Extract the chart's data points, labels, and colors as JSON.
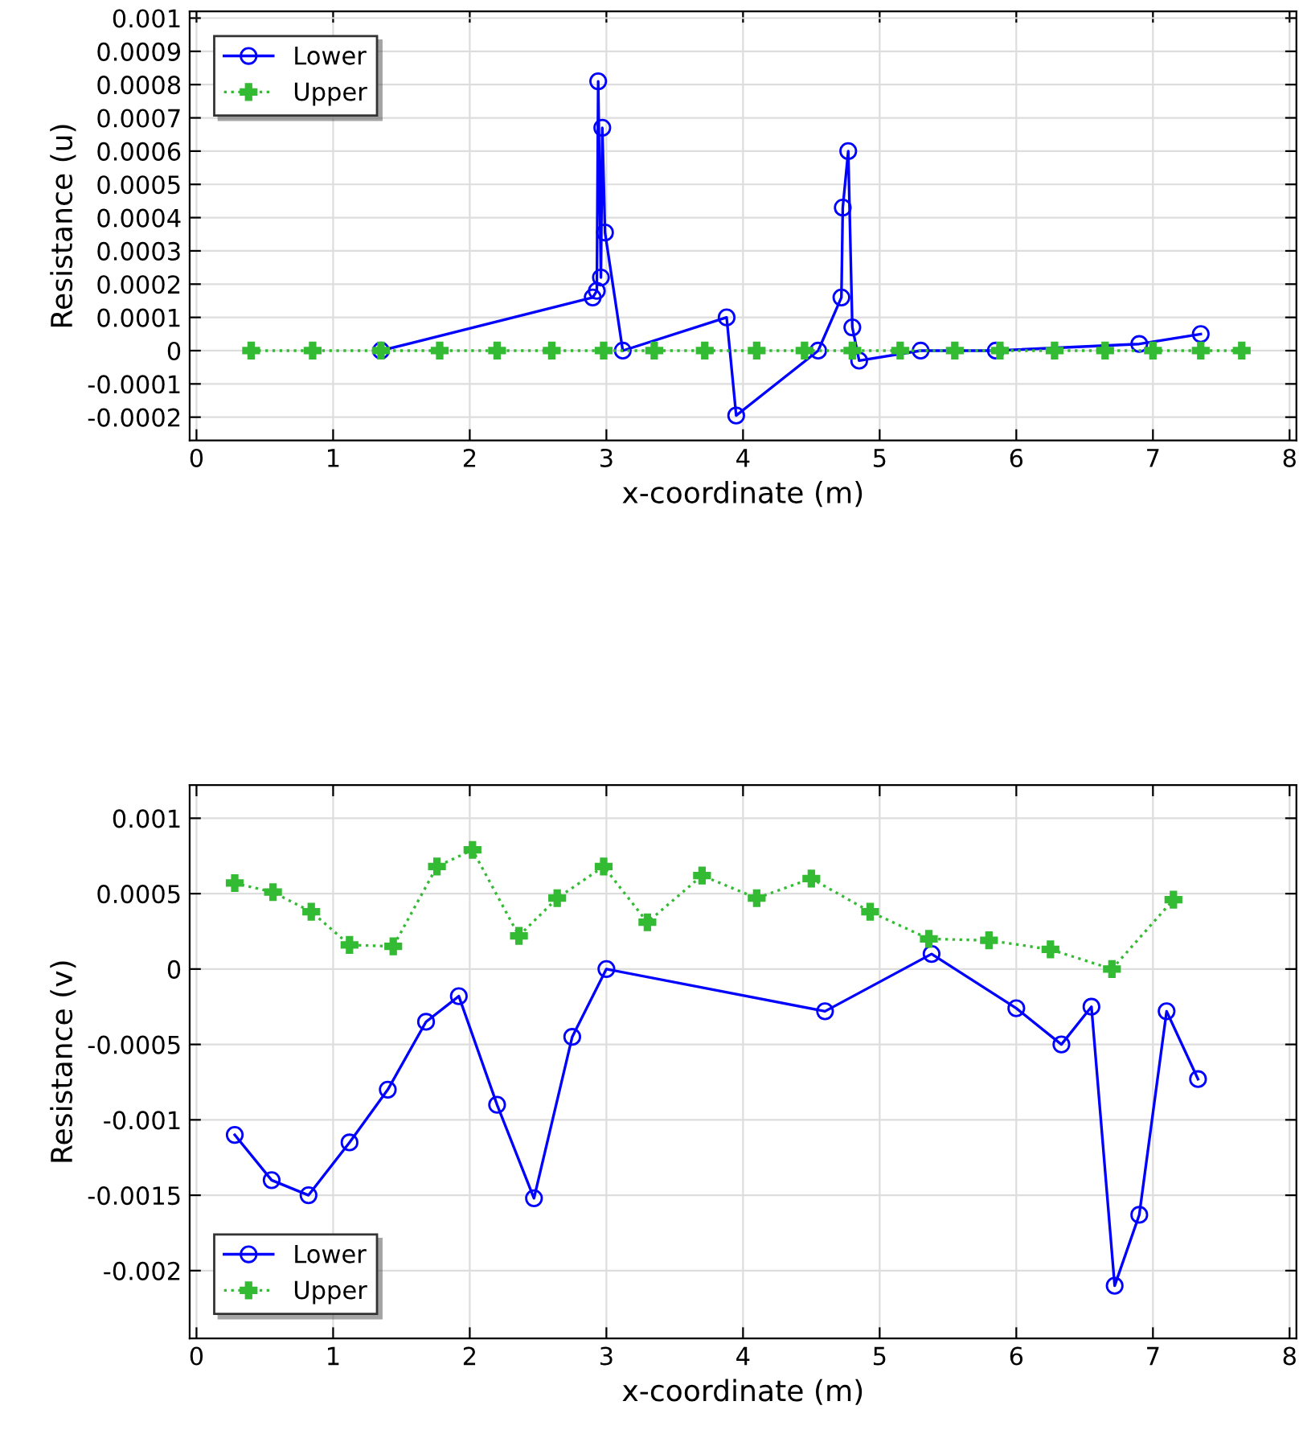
{
  "chart_data": [
    {
      "type": "line",
      "xlabel": "x-coordinate (m)",
      "ylabel": "Resistance (u)",
      "xlim": [
        -0.05,
        8.05
      ],
      "ylim": [
        -0.00027,
        0.00102
      ],
      "xticks": [
        0,
        1,
        2,
        3,
        4,
        5,
        6,
        7,
        8
      ],
      "yticks": [
        {
          "value": -0.0002,
          "label": "-0.0002"
        },
        {
          "value": -0.0001,
          "label": "-0.0001"
        },
        0,
        {
          "value": 0.0001,
          "label": "0.0001"
        },
        {
          "value": 0.0002,
          "label": "0.0002"
        },
        {
          "value": 0.0003,
          "label": "0.0003"
        },
        {
          "value": 0.0004,
          "label": "0.0004"
        },
        {
          "value": 0.0005,
          "label": "0.0005"
        },
        {
          "value": 0.0006,
          "label": "0.0006"
        },
        {
          "value": 0.0007,
          "label": "0.0007"
        },
        {
          "value": 0.0008,
          "label": "0.0008"
        },
        {
          "value": 0.0009,
          "label": "0.0009"
        },
        {
          "value": 0.001,
          "label": "0.001"
        }
      ],
      "grid": true,
      "legend": "top left",
      "series": [
        {
          "name": "Lower",
          "color": "#0000ff",
          "marker": "circle",
          "line_style": "solid",
          "x": [
            1.35,
            2.9,
            2.93,
            2.94,
            2.96,
            2.97,
            2.99,
            3.12,
            3.88,
            3.95,
            4.55,
            4.72,
            4.73,
            4.77,
            4.8,
            4.85,
            5.3,
            5.85,
            6.9,
            7.35
          ],
          "values": [
            0,
            0.00016,
            0.00018,
            0.00081,
            0.00022,
            0.00067,
            0.000355,
            0,
            0.0001,
            -0.000195,
            0,
            0.00016,
            0.00043,
            0.0006,
            7e-05,
            -3e-05,
            0,
            0,
            2e-05,
            5e-05
          ]
        },
        {
          "name": "Upper",
          "color": "#33bb33",
          "marker": "cross",
          "line_style": "dotted",
          "x": [
            0.4,
            0.85,
            1.35,
            1.78,
            2.2,
            2.6,
            2.98,
            3.35,
            3.72,
            4.1,
            4.45,
            4.8,
            5.15,
            5.55,
            5.88,
            6.28,
            6.65,
            7.0,
            7.35,
            7.65
          ],
          "values": [
            0,
            0,
            0,
            0,
            0,
            0,
            0,
            0,
            0,
            0,
            0,
            0,
            0,
            0,
            0,
            0,
            0,
            0,
            0,
            0
          ]
        }
      ]
    },
    {
      "type": "line",
      "xlabel": "x-coordinate (m)",
      "ylabel": "Resistance (v)",
      "xlim": [
        -0.05,
        8.05
      ],
      "ylim": [
        -0.00245,
        0.00122
      ],
      "xticks": [
        0,
        1,
        2,
        3,
        4,
        5,
        6,
        7,
        8
      ],
      "yticks": [
        {
          "value": -0.002,
          "label": "-0.002"
        },
        {
          "value": -0.0015,
          "label": "-0.0015"
        },
        {
          "value": -0.001,
          "label": "-0.001"
        },
        {
          "value": -0.0005,
          "label": "-0.0005"
        },
        0,
        {
          "value": 0.0005,
          "label": "0.0005"
        },
        {
          "value": 0.001,
          "label": "0.001"
        }
      ],
      "grid": true,
      "legend": "bottom left",
      "series": [
        {
          "name": "Lower",
          "color": "#0000ff",
          "marker": "circle",
          "line_style": "solid",
          "x": [
            0.28,
            0.55,
            0.82,
            1.12,
            1.4,
            1.68,
            1.92,
            2.2,
            2.47,
            2.75,
            3.0,
            4.6,
            5.38,
            6.0,
            6.33,
            6.55,
            6.72,
            6.9,
            7.1,
            7.33
          ],
          "values": [
            -0.0011,
            -0.0014,
            -0.0015,
            -0.00115,
            -0.0008,
            -0.00035,
            -0.00018,
            -0.0009,
            -0.00152,
            -0.00045,
            0,
            -0.00028,
            0.0001,
            -0.00026,
            -0.0005,
            -0.00025,
            -0.0021,
            -0.00163,
            -0.00028,
            -0.00073
          ]
        },
        {
          "name": "Upper",
          "color": "#33bb33",
          "marker": "cross",
          "line_style": "dotted",
          "x": [
            0.28,
            0.56,
            0.84,
            1.12,
            1.44,
            1.76,
            2.02,
            2.36,
            2.64,
            2.98,
            3.3,
            3.7,
            4.1,
            4.5,
            4.93,
            5.36,
            5.8,
            6.25,
            6.7,
            7.15
          ],
          "values": [
            0.00057,
            0.00051,
            0.00038,
            0.00016,
            0.00015,
            0.00068,
            0.00079,
            0.00022,
            0.00047,
            0.00068,
            0.00031,
            0.00062,
            0.00047,
            0.0006,
            0.00038,
            0.0002,
            0.00019,
            0.00013,
            0,
            0.00046
          ]
        }
      ]
    }
  ]
}
